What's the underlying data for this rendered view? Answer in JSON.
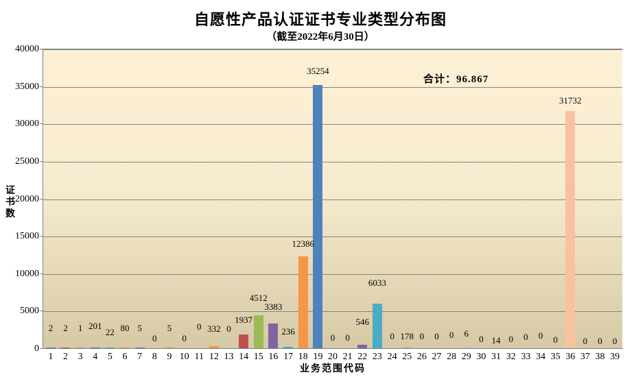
{
  "header": {
    "title": "自愿性产品认证证书专业类型分布图",
    "subtitle": "（截至2022年6月30日）"
  },
  "annotation": {
    "total_label": "合计：96.867"
  },
  "axes": {
    "y_title": "证书数",
    "x_title": "业务范围代码"
  },
  "chart_data": {
    "type": "bar",
    "title": "自愿性产品认证证书专业类型分布图",
    "subtitle": "（截至2022年6月30日）",
    "xlabel": "业务范围代码",
    "ylabel": "证书数",
    "ylim": [
      0,
      40000
    ],
    "ytick_interval": 5000,
    "yticks": [
      0,
      5000,
      10000,
      15000,
      20000,
      25000,
      30000,
      35000,
      40000
    ],
    "grid": true,
    "legend": "none",
    "annotation_total": 96867,
    "categories": [
      "1",
      "2",
      "3",
      "4",
      "5",
      "6",
      "7",
      "8",
      "9",
      "10",
      "11",
      "12",
      "13",
      "14",
      "15",
      "16",
      "17",
      "18",
      "19",
      "20",
      "21",
      "22",
      "23",
      "24",
      "25",
      "26",
      "27",
      "28",
      "29",
      "30",
      "31",
      "32",
      "33",
      "34",
      "35",
      "36",
      "37",
      "38",
      "39"
    ],
    "values": [
      2,
      2,
      1,
      201,
      22,
      80,
      5,
      0,
      5,
      0,
      0,
      332,
      0,
      1937,
      4512,
      3383,
      236,
      12386,
      35254,
      0,
      0,
      546,
      6033,
      0,
      178,
      0,
      0,
      0,
      6,
      0,
      14,
      0,
      0,
      0,
      0,
      31732,
      0,
      0,
      0
    ],
    "bar_colors": [
      "#4F81BD",
      "#C0504D",
      "#9BBB59",
      "#8064A2",
      "#4BACC6",
      "#F79646",
      "#4F81BD",
      "#C0504D",
      "#9BBB59",
      "#8064A2",
      "#4BACC6",
      "#F79646",
      "#4F81BD",
      "#C0504D",
      "#9BBB59",
      "#8064A2",
      "#4BACC6",
      "#F79646",
      "#4F81BD",
      "#C0504D",
      "#9BBB59",
      "#8064A2",
      "#4BACC6",
      "#F79646",
      "#95B3D7",
      "#D99694",
      "#C3D69B",
      "#B3A2C7",
      "#93CDDD",
      "#FAC090",
      "#B9CDE5",
      "#E6B9B8",
      "#D7E4BD",
      "#CCC1D9",
      "#B7DEE8",
      "#F8C2A0",
      "#95B3D7",
      "#D99694",
      "#C3D69B"
    ],
    "colors": {
      "plot_bg_top": "#FDF0D4",
      "plot_bg_bottom": "#D6C9A5",
      "gridline": "#848484",
      "axis_line": "#7F7F7F",
      "text": "#000000"
    }
  }
}
